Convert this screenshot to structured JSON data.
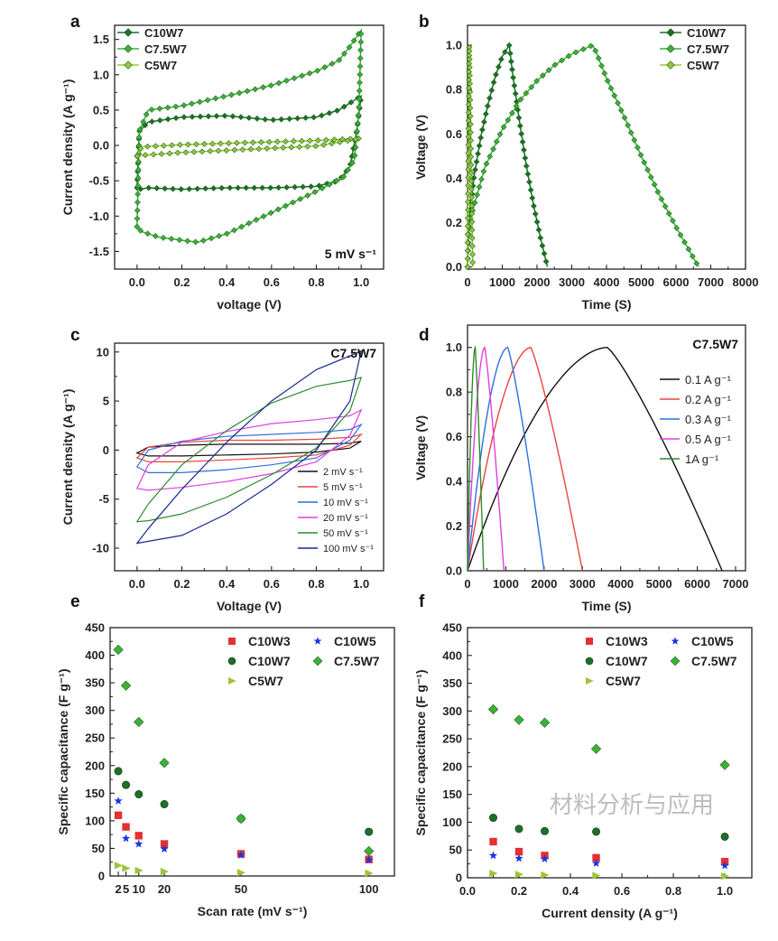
{
  "watermark": "材料分析与应用",
  "colors": {
    "C10W7": "#1e6e2a",
    "C7.5W7": "#3fae3a",
    "C5W7": "#9bc53a",
    "C10W3": "#e53030",
    "C10W5": "#1838e0"
  },
  "chart_data": [
    {
      "panel": "a",
      "type": "line",
      "title": "",
      "xlabel": "voltage (V)",
      "ylabel": "Current density (A g⁻¹)",
      "xlim": [
        -0.1,
        1.1
      ],
      "ylim": [
        -1.75,
        1.7
      ],
      "xticks": [
        0.0,
        0.2,
        0.4,
        0.6,
        0.8,
        1.0
      ],
      "xticklabels": [
        "0.0",
        "0.2",
        "0.4",
        "0.6",
        "0.8",
        "1.0"
      ],
      "yticks": [
        -1.5,
        -1.0,
        -0.5,
        0.0,
        0.5,
        1.0,
        1.5
      ],
      "yticklabels": [
        "-1.5",
        "-1.0",
        "-0.5",
        "0.0",
        "0.5",
        "1.0",
        "1.5"
      ],
      "annotation": "5 mV s⁻¹",
      "legend_position": "top-left",
      "series": [
        {
          "name": "C10W7",
          "color": "#1e6e2a",
          "x": [
            0,
            0.01,
            0.05,
            0.2,
            0.4,
            0.6,
            0.8,
            0.9,
            0.95,
            1.0,
            0.98,
            0.95,
            0.9,
            0.8,
            0.6,
            0.4,
            0.2,
            0.05,
            0.01,
            0
          ],
          "y": [
            -0.6,
            0.2,
            0.33,
            0.4,
            0.42,
            0.36,
            0.4,
            0.5,
            0.6,
            0.7,
            0.2,
            -0.3,
            -0.5,
            -0.58,
            -0.6,
            -0.6,
            -0.62,
            -0.6,
            -0.62,
            -0.6
          ]
        },
        {
          "name": "C7.5W7",
          "color": "#3fae3a",
          "x": [
            0,
            0.01,
            0.05,
            0.2,
            0.4,
            0.6,
            0.8,
            0.9,
            0.95,
            1.0,
            0.99,
            0.97,
            0.92,
            0.8,
            0.6,
            0.4,
            0.27,
            0.1,
            0.02,
            0
          ],
          "y": [
            -1.15,
            0.2,
            0.5,
            0.56,
            0.7,
            0.85,
            1.05,
            1.2,
            1.4,
            1.63,
            0.5,
            -0.2,
            -0.45,
            -0.65,
            -0.95,
            -1.25,
            -1.37,
            -1.3,
            -1.22,
            -1.15
          ]
        },
        {
          "name": "C5W7",
          "color": "#9bc53a",
          "x": [
            0,
            0.02,
            0.2,
            0.4,
            0.6,
            0.8,
            1.0,
            0.8,
            0.6,
            0.4,
            0.2,
            0.02,
            0
          ],
          "y": [
            -0.15,
            -0.02,
            0.01,
            0.03,
            0.05,
            0.07,
            0.1,
            -0.01,
            -0.04,
            -0.07,
            -0.1,
            -0.14,
            -0.15
          ]
        }
      ]
    },
    {
      "panel": "b",
      "type": "line",
      "xlabel": "Time (S)",
      "ylabel": "Voltage (V)",
      "xlim": [
        0,
        8000
      ],
      "ylim": [
        -0.01,
        1.09
      ],
      "xticks": [
        0,
        1000,
        2000,
        3000,
        4000,
        5000,
        6000,
        7000,
        8000
      ],
      "xticklabels": [
        "0",
        "1000",
        "2000",
        "3000",
        "4000",
        "5000",
        "6000",
        "7000",
        "8000"
      ],
      "yticks": [
        0.0,
        0.2,
        0.4,
        0.6,
        0.8,
        1.0
      ],
      "yticklabels": [
        "0.0",
        "0.2",
        "0.4",
        "0.6",
        "0.8",
        "1.0"
      ],
      "legend_position": "top-right",
      "series": [
        {
          "name": "C10W7",
          "color": "#1e6e2a",
          "x": [
            0,
            30,
            200,
            400,
            600,
            800,
            1000,
            1200,
            1300,
            1500,
            1700,
            1900,
            2100,
            2300
          ],
          "y": [
            0,
            0.2,
            0.42,
            0.6,
            0.74,
            0.86,
            0.95,
            1.0,
            0.87,
            0.65,
            0.45,
            0.28,
            0.13,
            0
          ]
        },
        {
          "name": "C7.5W7",
          "color": "#3fae3a",
          "x": [
            0,
            50,
            500,
            1000,
            1500,
            2000,
            2500,
            3000,
            3600,
            3700,
            4000,
            4500,
            5000,
            5500,
            6000,
            6650
          ],
          "y": [
            0,
            0.2,
            0.45,
            0.62,
            0.75,
            0.84,
            0.91,
            0.96,
            1.0,
            0.97,
            0.85,
            0.68,
            0.5,
            0.33,
            0.18,
            0
          ]
        },
        {
          "name": "C5W7",
          "color": "#9bc53a",
          "x": [
            0,
            20,
            50,
            100,
            150
          ],
          "y": [
            0,
            0.5,
            1.0,
            0.5,
            0
          ]
        }
      ]
    },
    {
      "panel": "c",
      "type": "line",
      "xlabel": "Voltage (V)",
      "ylabel": "Current density (A g⁻¹)",
      "xlim": [
        -0.1,
        1.1
      ],
      "ylim": [
        -12.3,
        10.9
      ],
      "xticks": [
        0.0,
        0.2,
        0.4,
        0.6,
        0.8,
        1.0
      ],
      "xticklabels": [
        "0.0",
        "0.2",
        "0.4",
        "0.6",
        "0.8",
        "1.0"
      ],
      "yticks": [
        -10,
        -5,
        0,
        5,
        10
      ],
      "yticklabels": [
        "-10",
        "-5",
        "0",
        "5",
        "10"
      ],
      "annotation": "C7.5W7",
      "legend_position": "bottom-right",
      "voltage": [
        0,
        0.05,
        0.2,
        0.4,
        0.6,
        0.8,
        0.95,
        1.0
      ],
      "series": [
        {
          "name": "2 mV s⁻¹",
          "color": "#111111",
          "upper": [
            -0.3,
            0.3,
            0.5,
            0.6,
            0.6,
            0.6,
            0.7,
            0.9
          ],
          "lower": [
            -0.3,
            -0.6,
            -0.6,
            -0.5,
            -0.4,
            -0.2,
            0.2,
            0.9
          ]
        },
        {
          "name": "5 mV s⁻¹",
          "color": "#e8453c",
          "upper": [
            -0.8,
            0.3,
            0.8,
            1.0,
            1.0,
            1.1,
            1.3,
            1.6
          ],
          "lower": [
            -0.8,
            -1.2,
            -1.2,
            -1.0,
            -0.8,
            -0.5,
            0.5,
            1.6
          ]
        },
        {
          "name": "10 mV s⁻¹",
          "color": "#2e6fe0",
          "upper": [
            -1.7,
            0.0,
            0.9,
            1.4,
            1.6,
            1.8,
            2.1,
            2.6
          ],
          "lower": [
            -1.7,
            -2.3,
            -2.3,
            -2.0,
            -1.5,
            -0.8,
            1.0,
            2.6
          ]
        },
        {
          "name": "20 mV s⁻¹",
          "color": "#e23ee0",
          "upper": [
            -3.9,
            -1.5,
            0.8,
            1.9,
            2.7,
            3.1,
            3.5,
            4.1
          ],
          "lower": [
            -3.9,
            -4.1,
            -3.8,
            -3.2,
            -2.4,
            -1.2,
            1.5,
            4.1
          ]
        },
        {
          "name": "50 mV s⁻¹",
          "color": "#2e8b2e",
          "upper": [
            -7.3,
            -5.5,
            -1.5,
            2.0,
            4.8,
            6.5,
            7.1,
            7.4
          ],
          "lower": [
            -7.3,
            -7.2,
            -6.5,
            -4.8,
            -2.5,
            0.2,
            4.0,
            7.4
          ]
        },
        {
          "name": "100 mV s⁻¹",
          "color": "#1c2a8c",
          "upper": [
            -9.5,
            -8.0,
            -4.0,
            0.8,
            5.0,
            8.2,
            9.6,
            10.1
          ],
          "lower": [
            -9.5,
            -9.3,
            -8.7,
            -6.5,
            -3.5,
            0.0,
            5.0,
            10.1
          ]
        }
      ]
    },
    {
      "panel": "d",
      "type": "line",
      "xlabel": "Time (S)",
      "ylabel": "Voltage (V)",
      "xlim": [
        0,
        7260
      ],
      "ylim": [
        0,
        1.1
      ],
      "xticks": [
        0,
        1000,
        2000,
        3000,
        4000,
        5000,
        6000,
        7000
      ],
      "xticklabels": [
        "0",
        "1000",
        "2000",
        "3000",
        "4000",
        "5000",
        "6000",
        "7000"
      ],
      "yticks": [
        0.0,
        0.2,
        0.4,
        0.6,
        0.8,
        1.0
      ],
      "yticklabels": [
        "0.0",
        "0.2",
        "0.4",
        "0.6",
        "0.8",
        "1.0"
      ],
      "annotation": "C7.5W7",
      "legend_position": "right",
      "series": [
        {
          "name": "0.1 A g⁻¹",
          "color": "#111111",
          "peak_time": 3650,
          "end_time": 6650,
          "vmax": 1.0
        },
        {
          "name": "0.2 A g⁻¹",
          "color": "#e8453c",
          "peak_time": 1650,
          "end_time": 3000,
          "vmax": 1.0
        },
        {
          "name": "0.3 A g⁻¹",
          "color": "#2e6fe0",
          "peak_time": 1050,
          "end_time": 2000,
          "vmax": 1.0
        },
        {
          "name": "0.5 A g⁻¹",
          "color": "#e23ee0",
          "peak_time": 450,
          "end_time": 950,
          "vmax": 1.0
        },
        {
          "name": "1A g⁻¹",
          "color": "#2e8b2e",
          "peak_time": 200,
          "end_time": 420,
          "vmax": 1.0
        }
      ]
    },
    {
      "panel": "e",
      "type": "scatter",
      "xlabel": "Scan rate (mV s⁻¹)",
      "ylabel": "Specific capacitance (F g⁻¹)",
      "xlim": [
        -1.2,
        110
      ],
      "ylim": [
        0,
        450
      ],
      "xticks": [
        2,
        5,
        10,
        20,
        50,
        100
      ],
      "xticklabels": [
        "2",
        "5",
        "10",
        "20",
        "50",
        "100"
      ],
      "yticks": [
        0,
        50,
        100,
        150,
        200,
        250,
        300,
        350,
        400,
        450
      ],
      "yticklabels": [
        "0",
        "50",
        "100",
        "150",
        "200",
        "250",
        "300",
        "350",
        "400",
        "450"
      ],
      "legend_position": "top-right",
      "x": [
        2,
        5,
        10,
        20,
        50,
        100
      ],
      "series": [
        {
          "name": "C10W3",
          "marker": "square",
          "color": "#e53030",
          "values": [
            110,
            89,
            73,
            58,
            40,
            30
          ]
        },
        {
          "name": "C10W5",
          "marker": "star",
          "color": "#1838e0",
          "values": [
            136,
            68,
            58,
            49,
            38,
            29
          ]
        },
        {
          "name": "C10W7",
          "marker": "circle",
          "color": "#1e6e2a",
          "values": [
            190,
            165,
            148,
            130,
            104,
            80
          ]
        },
        {
          "name": "C7.5W7",
          "marker": "diamond",
          "color": "#3fae3a",
          "values": [
            410,
            345,
            279,
            205,
            104,
            45
          ]
        },
        {
          "name": "C5W7",
          "marker": "triangle",
          "color": "#9bc53a",
          "values": [
            19,
            14,
            10,
            8,
            6,
            5
          ]
        }
      ]
    },
    {
      "panel": "f",
      "type": "scatter",
      "xlabel": "Current density (A g⁻¹)",
      "ylabel": "Specific capacitance (F g⁻¹)",
      "xlim": [
        0,
        1.105
      ],
      "ylim": [
        0,
        450
      ],
      "xticks": [
        0.0,
        0.2,
        0.4,
        0.6,
        0.8,
        1.0
      ],
      "xticklabels": [
        "0.0",
        "0.2",
        "0.4",
        "0.6",
        "0.8",
        "1.0"
      ],
      "yticks": [
        0,
        50,
        100,
        150,
        200,
        250,
        300,
        350,
        400,
        450
      ],
      "yticklabels": [
        "0",
        "50",
        "100",
        "150",
        "200",
        "250",
        "300",
        "350",
        "400",
        "450"
      ],
      "legend_position": "top-right",
      "x": [
        0.1,
        0.2,
        0.3,
        0.5,
        1.0
      ],
      "series": [
        {
          "name": "C10W3",
          "marker": "square",
          "color": "#e53030",
          "values": [
            65,
            47,
            40,
            36,
            29
          ]
        },
        {
          "name": "C10W5",
          "marker": "star",
          "color": "#1838e0",
          "values": [
            40,
            35,
            34,
            26,
            22
          ]
        },
        {
          "name": "C10W7",
          "marker": "circle",
          "color": "#1e6e2a",
          "values": [
            108,
            88,
            84,
            83,
            74
          ]
        },
        {
          "name": "C7.5W7",
          "marker": "diamond",
          "color": "#3fae3a",
          "values": [
            303,
            284,
            279,
            232,
            203
          ]
        },
        {
          "name": "C5W7",
          "marker": "triangle",
          "color": "#9bc53a",
          "values": [
            8,
            6,
            5,
            4,
            3
          ]
        }
      ]
    }
  ]
}
